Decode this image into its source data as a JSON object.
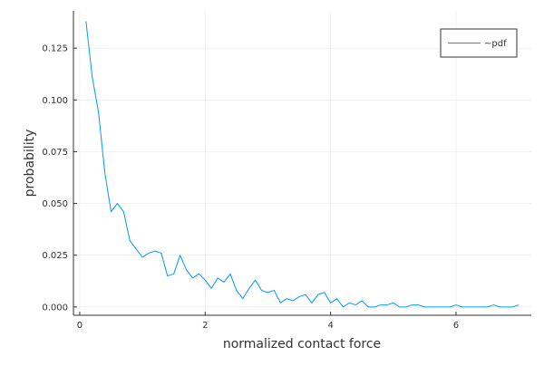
{
  "chart_data": {
    "type": "line",
    "title": "",
    "xlabel": "normalized contact force",
    "ylabel": "probability",
    "xlim": [
      -0.1,
      7.2
    ],
    "ylim": [
      -0.004,
      0.143
    ],
    "xticks": [
      0,
      2,
      4,
      6
    ],
    "xtick_labels": [
      "0",
      "2",
      "4",
      "6"
    ],
    "yticks": [
      0.0,
      0.025,
      0.05,
      0.075,
      0.1,
      0.125
    ],
    "ytick_labels": [
      "0.000",
      "0.025",
      "0.050",
      "0.075",
      "0.100",
      "0.125"
    ],
    "grid": true,
    "legend_position": "top-right",
    "series": [
      {
        "name": "~pdf",
        "color": "#009AFA",
        "x": [
          0.1,
          0.2,
          0.3,
          0.4,
          0.5,
          0.6,
          0.7,
          0.8,
          0.9,
          1.0,
          1.1,
          1.2,
          1.3,
          1.4,
          1.5,
          1.6,
          1.7,
          1.8,
          1.9,
          2.0,
          2.1,
          2.2,
          2.3,
          2.4,
          2.5,
          2.6,
          2.7,
          2.8,
          2.9,
          3.0,
          3.1,
          3.2,
          3.3,
          3.4,
          3.5,
          3.6,
          3.7,
          3.8,
          3.9,
          4.0,
          4.1,
          4.2,
          4.3,
          4.4,
          4.5,
          4.6,
          4.7,
          4.8,
          4.9,
          5.0,
          5.1,
          5.2,
          5.3,
          5.4,
          5.5,
          5.6,
          5.7,
          5.8,
          5.9,
          6.0,
          6.1,
          6.2,
          6.3,
          6.4,
          6.5,
          6.6,
          6.7,
          6.8,
          6.9,
          7.0
        ],
        "values": [
          0.138,
          0.111,
          0.094,
          0.065,
          0.046,
          0.05,
          0.046,
          0.032,
          0.028,
          0.024,
          0.026,
          0.027,
          0.026,
          0.015,
          0.016,
          0.025,
          0.018,
          0.014,
          0.016,
          0.013,
          0.009,
          0.014,
          0.012,
          0.016,
          0.008,
          0.004,
          0.009,
          0.013,
          0.008,
          0.007,
          0.008,
          0.002,
          0.004,
          0.003,
          0.005,
          0.006,
          0.002,
          0.006,
          0.007,
          0.002,
          0.004,
          0.0,
          0.002,
          0.001,
          0.003,
          0.0,
          0.0,
          0.001,
          0.001,
          0.002,
          0.0,
          0.0,
          0.001,
          0.001,
          0.0,
          0.0,
          0.0,
          0.0,
          0.0,
          0.001,
          0.0,
          0.0,
          0.0,
          0.0,
          0.0,
          0.001,
          0.0,
          0.0,
          0.0,
          0.001
        ]
      }
    ]
  }
}
